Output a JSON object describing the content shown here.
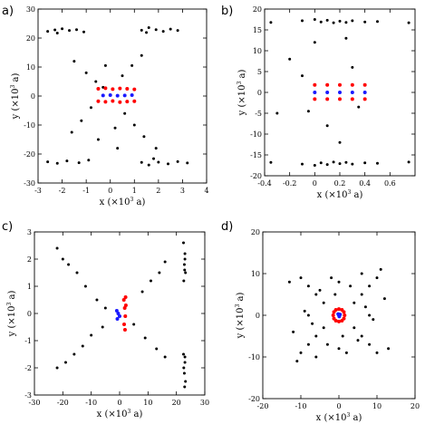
{
  "chart_data": [
    {
      "type": "scatter",
      "panel": "a)",
      "xlabel": "x (×10",
      "xlabel_exp": "3",
      "xlabel_end": " a)",
      "ylabel": "y (×10",
      "ylabel_exp": "3",
      "ylabel_end": " a)",
      "xlim": [
        -3,
        4
      ],
      "ylim": [
        -30,
        30
      ],
      "xticks": [
        -3,
        -2,
        -1,
        0,
        1,
        2,
        3,
        4
      ],
      "yticks": [
        -30,
        -20,
        -10,
        0,
        10,
        20,
        30
      ],
      "grid": false,
      "colors": {
        "black": "#000000",
        "red": "#ff0000",
        "blue": "#1a1aff"
      },
      "series": [
        {
          "color": "black",
          "values": [
            [
              -2.6,
              22.3
            ],
            [
              -2.3,
              22.8
            ],
            [
              -2.0,
              23.2
            ],
            [
              -1.7,
              22.6
            ],
            [
              -1.4,
              22.9
            ],
            [
              -1.1,
              22.1
            ],
            [
              -2.2,
              21.7
            ],
            [
              1.3,
              22.7
            ],
            [
              1.6,
              23.6
            ],
            [
              1.9,
              22.9
            ],
            [
              2.2,
              22.3
            ],
            [
              2.5,
              23.1
            ],
            [
              2.8,
              22.6
            ],
            [
              1.5,
              21.9
            ],
            [
              -1.5,
              12.0
            ],
            [
              -1.0,
              8.0
            ],
            [
              -0.6,
              5.0
            ],
            [
              -0.3,
              3.0
            ],
            [
              0.5,
              7.0
            ],
            [
              0.9,
              10.5
            ],
            [
              1.3,
              14.0
            ],
            [
              -0.8,
              -4.0
            ],
            [
              -1.2,
              -8.5
            ],
            [
              -1.6,
              -12.5
            ],
            [
              -0.5,
              -15.0
            ],
            [
              0.6,
              -6.0
            ],
            [
              1.0,
              -10.0
            ],
            [
              1.4,
              -14.0
            ],
            [
              1.9,
              -18.0
            ],
            [
              -2.6,
              -22.7
            ],
            [
              -2.2,
              -23.2
            ],
            [
              -1.8,
              -22.4
            ],
            [
              -1.3,
              -23.0
            ],
            [
              -0.9,
              -22.1
            ],
            [
              1.3,
              -22.9
            ],
            [
              1.6,
              -23.8
            ],
            [
              2.0,
              -22.8
            ],
            [
              2.4,
              -23.4
            ],
            [
              2.8,
              -22.6
            ],
            [
              3.2,
              -23.1
            ],
            [
              1.8,
              -21.6
            ],
            [
              0.3,
              -18.0
            ],
            [
              -0.2,
              10.5
            ],
            [
              0.2,
              -11.0
            ]
          ]
        },
        {
          "color": "red",
          "values": [
            [
              -0.5,
              2.5
            ],
            [
              -0.2,
              2.7
            ],
            [
              0.1,
              2.4
            ],
            [
              0.4,
              2.6
            ],
            [
              0.7,
              2.5
            ],
            [
              1.0,
              2.3
            ],
            [
              -0.5,
              -1.8
            ],
            [
              -0.2,
              -2.0
            ],
            [
              0.1,
              -1.7
            ],
            [
              0.4,
              -2.1
            ],
            [
              0.7,
              -1.9
            ],
            [
              1.0,
              -1.8
            ]
          ]
        },
        {
          "color": "blue",
          "values": [
            [
              -0.3,
              0.2
            ],
            [
              0.0,
              0.3
            ],
            [
              0.3,
              0.1
            ],
            [
              0.6,
              0.2
            ],
            [
              0.9,
              0.3
            ]
          ]
        }
      ]
    },
    {
      "type": "scatter",
      "panel": "b)",
      "xlabel": "x (×10",
      "xlabel_exp": "3",
      "xlabel_end": " a)",
      "ylabel": "y (×10",
      "ylabel_exp": "3",
      "ylabel_end": " a)",
      "xlim": [
        -0.4,
        0.8
      ],
      "ylim": [
        -20,
        20
      ],
      "xticks": [
        -0.4,
        -0.2,
        0,
        0.2,
        0.4,
        0.6
      ],
      "yticks": [
        -20,
        -15,
        -10,
        -5,
        0,
        5,
        10,
        15,
        20
      ],
      "grid": false,
      "colors": {
        "black": "#000000",
        "red": "#ff0000",
        "blue": "#1a1aff"
      },
      "series": [
        {
          "color": "black",
          "values": [
            [
              -0.35,
              16.8
            ],
            [
              -0.1,
              17.2
            ],
            [
              0.0,
              17.5
            ],
            [
              0.05,
              16.9
            ],
            [
              0.1,
              17.3
            ],
            [
              0.15,
              16.7
            ],
            [
              0.2,
              17.1
            ],
            [
              0.25,
              16.8
            ],
            [
              0.3,
              17.2
            ],
            [
              0.4,
              16.9
            ],
            [
              0.5,
              17.0
            ],
            [
              0.75,
              16.7
            ],
            [
              -0.35,
              -16.8
            ],
            [
              -0.1,
              -17.2
            ],
            [
              0.0,
              -17.5
            ],
            [
              0.05,
              -16.9
            ],
            [
              0.1,
              -17.3
            ],
            [
              0.15,
              -16.7
            ],
            [
              0.2,
              -17.1
            ],
            [
              0.25,
              -16.8
            ],
            [
              0.3,
              -17.2
            ],
            [
              0.4,
              -16.9
            ],
            [
              0.5,
              -17.0
            ],
            [
              0.75,
              -16.7
            ],
            [
              -0.2,
              8.0
            ],
            [
              -0.1,
              4.0
            ],
            [
              0.0,
              12.0
            ],
            [
              0.1,
              -8.0
            ],
            [
              0.2,
              -12.0
            ],
            [
              0.3,
              6.0
            ],
            [
              -0.05,
              -4.5
            ],
            [
              0.35,
              -3.5
            ],
            [
              -0.3,
              -5.0
            ],
            [
              0.25,
              13.0
            ]
          ]
        },
        {
          "color": "red",
          "values": [
            [
              0.0,
              1.8
            ],
            [
              0.1,
              1.8
            ],
            [
              0.2,
              1.8
            ],
            [
              0.3,
              1.8
            ],
            [
              0.4,
              1.8
            ],
            [
              0.0,
              -1.6
            ],
            [
              0.1,
              -1.6
            ],
            [
              0.2,
              -1.6
            ],
            [
              0.3,
              -1.6
            ],
            [
              0.4,
              -1.6
            ]
          ]
        },
        {
          "color": "blue",
          "values": [
            [
              0.0,
              0.0
            ],
            [
              0.1,
              0.0
            ],
            [
              0.2,
              0.0
            ],
            [
              0.3,
              0.0
            ],
            [
              0.4,
              0.0
            ]
          ]
        }
      ]
    },
    {
      "type": "scatter",
      "panel": "c)",
      "xlabel": "x (×10",
      "xlabel_exp": "3",
      "xlabel_end": " a)",
      "ylabel": "y (×10",
      "ylabel_exp": "3",
      "ylabel_end": " a)",
      "xlim": [
        -30,
        30
      ],
      "ylim": [
        -3,
        3
      ],
      "xticks": [
        -30,
        -20,
        -10,
        0,
        10,
        20,
        30
      ],
      "yticks": [
        -3,
        -2,
        -1,
        0,
        1,
        2,
        3
      ],
      "grid": false,
      "colors": {
        "black": "#000000",
        "red": "#ff0000",
        "blue": "#1a1aff"
      },
      "series": [
        {
          "color": "black",
          "values": [
            [
              22.5,
              2.6
            ],
            [
              23.0,
              2.2
            ],
            [
              22.8,
              1.8
            ],
            [
              23.2,
              1.5
            ],
            [
              22.6,
              1.2
            ],
            [
              23.0,
              2.0
            ],
            [
              22.9,
              1.6
            ],
            [
              22.5,
              -1.5
            ],
            [
              23.0,
              -1.8
            ],
            [
              22.8,
              -2.2
            ],
            [
              23.2,
              -2.5
            ],
            [
              22.6,
              -2.0
            ],
            [
              23.0,
              -1.6
            ],
            [
              22.9,
              -2.7
            ],
            [
              -22.0,
              2.4
            ],
            [
              -20.0,
              2.0
            ],
            [
              -18.0,
              1.8
            ],
            [
              -15.0,
              1.5
            ],
            [
              -12.0,
              1.0
            ],
            [
              -8.0,
              0.5
            ],
            [
              -5.0,
              0.2
            ],
            [
              -22.0,
              -2.0
            ],
            [
              -19.0,
              -1.8
            ],
            [
              -16.0,
              -1.5
            ],
            [
              -13.0,
              -1.2
            ],
            [
              -10.0,
              -0.8
            ],
            [
              -6.0,
              -0.5
            ],
            [
              16.0,
              1.9
            ],
            [
              14.0,
              1.5
            ],
            [
              11.0,
              1.2
            ],
            [
              8.0,
              0.8
            ],
            [
              16.0,
              -1.6
            ],
            [
              13.0,
              -1.3
            ],
            [
              9.0,
              -0.9
            ],
            [
              5.0,
              -0.4
            ]
          ]
        },
        {
          "color": "red",
          "values": [
            [
              1.5,
              0.5
            ],
            [
              1.8,
              0.2
            ],
            [
              2.0,
              -0.1
            ],
            [
              1.6,
              -0.4
            ],
            [
              2.2,
              0.3
            ],
            [
              1.9,
              -0.6
            ],
            [
              2.1,
              0.6
            ]
          ]
        },
        {
          "color": "blue",
          "values": [
            [
              -1.0,
              0.1
            ],
            [
              -0.5,
              0.0
            ],
            [
              0.0,
              -0.1
            ],
            [
              -0.8,
              -0.2
            ]
          ]
        }
      ]
    },
    {
      "type": "scatter",
      "panel": "d)",
      "xlabel": "x (×10",
      "xlabel_exp": "3",
      "xlabel_end": " a)",
      "ylabel": "y (×10",
      "ylabel_exp": "3",
      "ylabel_end": " a)",
      "xlim": [
        -20,
        20
      ],
      "ylim": [
        -20,
        20
      ],
      "xticks": [
        -20,
        -10,
        0,
        10,
        20
      ],
      "yticks": [
        -20,
        -10,
        0,
        10,
        20
      ],
      "grid": false,
      "colors": {
        "black": "#000000",
        "red": "#ff0000",
        "blue": "#1a1aff"
      },
      "series": [
        {
          "color": "black",
          "values": [
            [
              -10,
              9
            ],
            [
              -8,
              7
            ],
            [
              -6,
              5
            ],
            [
              -4,
              3
            ],
            [
              4,
              3
            ],
            [
              6,
              5
            ],
            [
              8,
              7
            ],
            [
              10,
              9
            ],
            [
              -10,
              -9
            ],
            [
              -8,
              -7
            ],
            [
              -6,
              -5
            ],
            [
              -4,
              -3
            ],
            [
              4,
              -3
            ],
            [
              6,
              -5
            ],
            [
              8,
              -7
            ],
            [
              10,
              -9
            ],
            [
              -9,
              1
            ],
            [
              -7,
              -2
            ],
            [
              -5,
              6
            ],
            [
              -3,
              -7
            ],
            [
              3,
              7
            ],
            [
              5,
              -6
            ],
            [
              7,
              2
            ],
            [
              9,
              -1
            ],
            [
              -2,
              9
            ],
            [
              2,
              -9
            ],
            [
              -1,
              5
            ],
            [
              1,
              -5
            ],
            [
              -12,
              -4
            ],
            [
              12,
              4
            ],
            [
              -6,
              -10
            ],
            [
              6,
              10
            ],
            [
              0,
              8
            ],
            [
              0,
              -8
            ],
            [
              -8,
              0
            ],
            [
              8,
              0
            ],
            [
              11,
              11
            ],
            [
              -11,
              -11
            ],
            [
              13,
              -8
            ],
            [
              -13,
              8
            ]
          ]
        },
        {
          "color": "red",
          "values": [
            [
              1.5,
              0
            ],
            [
              1.3,
              0.8
            ],
            [
              0.8,
              1.3
            ],
            [
              0,
              1.5
            ],
            [
              -0.8,
              1.3
            ],
            [
              -1.3,
              0.8
            ],
            [
              -1.5,
              0
            ],
            [
              -1.3,
              -0.8
            ],
            [
              -0.8,
              -1.3
            ],
            [
              0,
              -1.5
            ],
            [
              0.8,
              -1.3
            ],
            [
              1.3,
              -0.8
            ]
          ]
        },
        {
          "color": "blue",
          "values": [
            [
              0,
              0
            ],
            [
              0.3,
              0.2
            ],
            [
              -0.2,
              0.3
            ],
            [
              0.1,
              -0.3
            ]
          ]
        }
      ]
    }
  ]
}
